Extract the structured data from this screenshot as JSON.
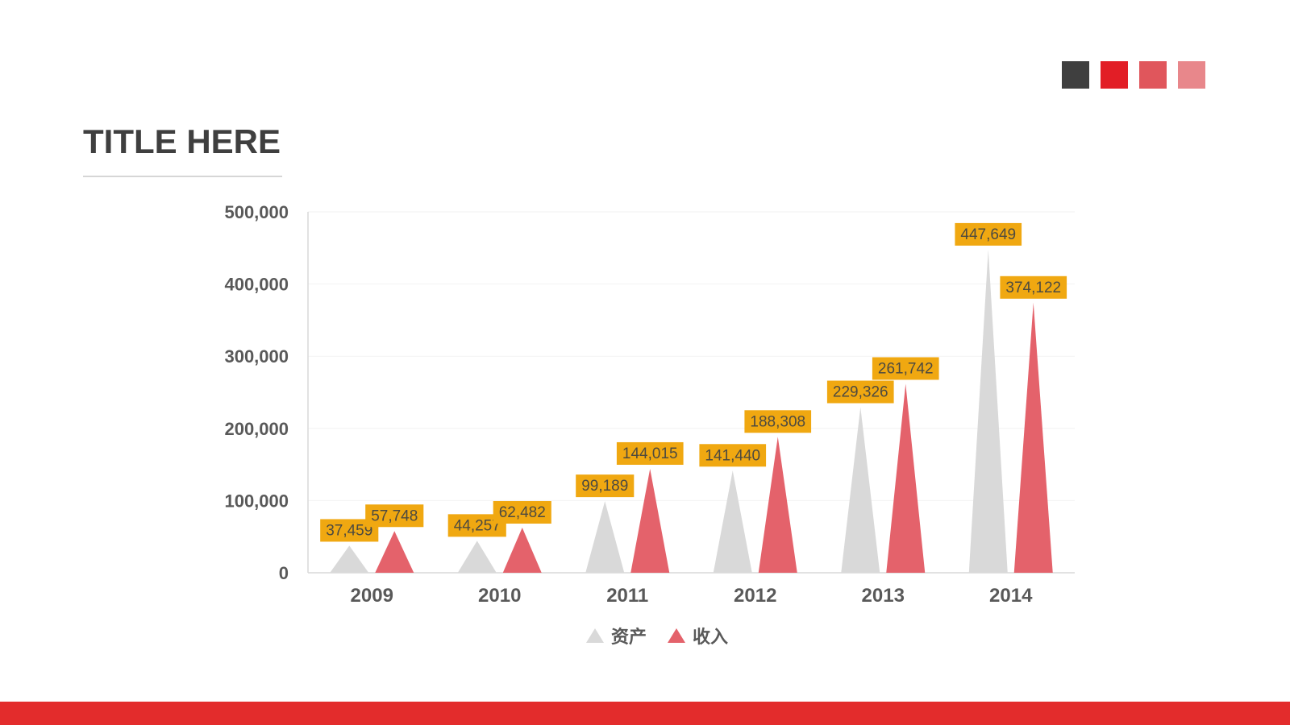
{
  "header": {
    "title": "TITLE HERE",
    "title_color": "#3F3F3F",
    "underline_color": "#D6D6D6"
  },
  "palette_swatches": [
    {
      "name": "dark-gray",
      "color": "#3F3F3F"
    },
    {
      "name": "bright-red",
      "color": "#E21E26"
    },
    {
      "name": "medium-red",
      "color": "#E0565C"
    },
    {
      "name": "light-red",
      "color": "#E8878B"
    }
  ],
  "footer": {
    "bar_color": "#E32C2C"
  },
  "chart_data": {
    "type": "bar",
    "bar_shape": "triangle",
    "categories": [
      "2009",
      "2010",
      "2011",
      "2012",
      "2013",
      "2014"
    ],
    "series": [
      {
        "name": "资产",
        "color": "#D9D9D9",
        "values": [
          37459,
          44257,
          99189,
          141440,
          229326,
          447649
        ]
      },
      {
        "name": "收入",
        "color": "#E4626B",
        "values": [
          57748,
          62482,
          144015,
          188308,
          261742,
          374122
        ]
      }
    ],
    "ylim": [
      0,
      500000
    ],
    "ytick_step": 100000,
    "ytick_labels": [
      "0",
      "100,000",
      "200,000",
      "300,000",
      "400,000",
      "500,000"
    ],
    "grid": true,
    "legend_position": "bottom",
    "axis_color": "#D9D9D9",
    "grid_color": "#F2F2F2",
    "tick_text_color": "#595959",
    "data_labels": {
      "background": "#F0A811",
      "text_color": "#4D4A40"
    }
  }
}
